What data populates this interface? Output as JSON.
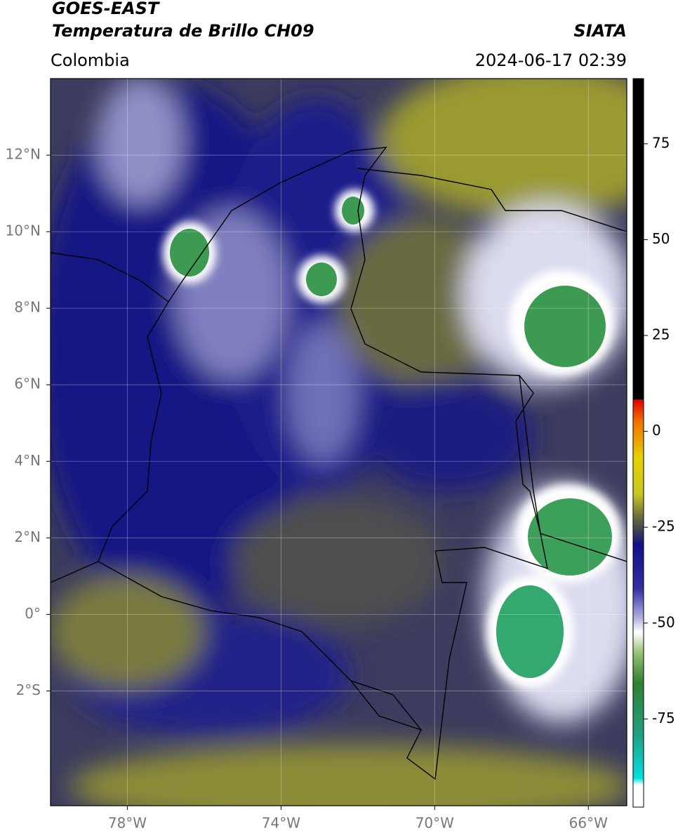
{
  "header": {
    "title": "GOES-EAST",
    "subtitle": "Temperatura de Brillo CH09",
    "source": "SIATA",
    "region": "Colombia",
    "datetime": "2024-06-17 02:39"
  },
  "map": {
    "lonlim": [
      -80,
      -65
    ],
    "latlim": [
      -5,
      14
    ],
    "lon_ticks": [
      {
        "value": -78,
        "label": "78°W"
      },
      {
        "value": -74,
        "label": "74°W"
      },
      {
        "value": -70,
        "label": "70°W"
      },
      {
        "value": -66,
        "label": "66°W"
      }
    ],
    "lat_ticks": [
      {
        "value": 12,
        "label": "12°N"
      },
      {
        "value": 10,
        "label": "10°N"
      },
      {
        "value": 8,
        "label": "8°N"
      },
      {
        "value": 6,
        "label": "6°N"
      },
      {
        "value": 4,
        "label": "4°N"
      },
      {
        "value": 2,
        "label": "2°N"
      },
      {
        "value": 0,
        "label": "0°"
      },
      {
        "value": -2,
        "label": "2°S"
      }
    ]
  },
  "colorbar": {
    "lim": [
      -98,
      92
    ],
    "ticks": [
      75,
      50,
      25,
      0,
      -25,
      -50,
      -75
    ]
  }
}
